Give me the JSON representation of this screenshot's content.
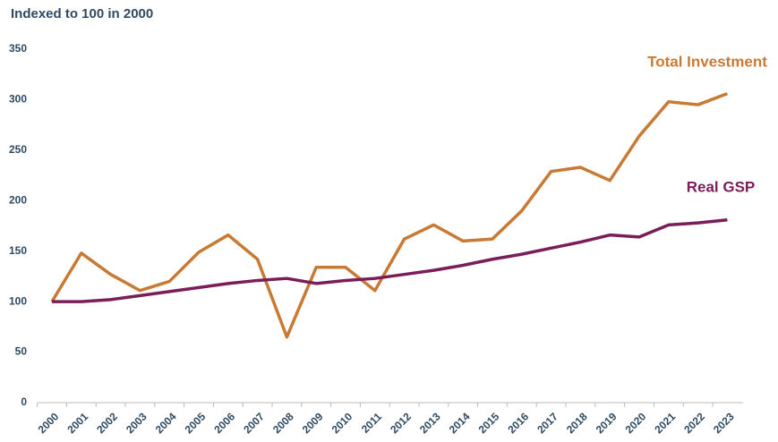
{
  "chart_data": {
    "type": "line",
    "title": "Indexed to 100 in 2000",
    "categories": [
      "2000",
      "2001",
      "2002",
      "2003",
      "2004",
      "2005",
      "2006",
      "2007",
      "2008",
      "2009",
      "2010",
      "2011",
      "2012",
      "2013",
      "2014",
      "2015",
      "2016",
      "2017",
      "2018",
      "2019",
      "2020",
      "2021",
      "2022",
      "2023"
    ],
    "series": [
      {
        "name": "Total Investment",
        "color": "#c87a34",
        "values": [
          100,
          148,
          127,
          111,
          120,
          149,
          166,
          142,
          65,
          134,
          134,
          111,
          162,
          176,
          160,
          162,
          190,
          229,
          233,
          220,
          264,
          298,
          295,
          306
        ]
      },
      {
        "name": "Real GSP",
        "color": "#7a1e5a",
        "values": [
          100,
          100,
          102,
          106,
          110,
          114,
          118,
          121,
          123,
          118,
          121,
          123,
          127,
          131,
          136,
          142,
          147,
          153,
          159,
          166,
          164,
          176,
          178,
          181
        ]
      }
    ],
    "ylim": [
      0,
      350
    ],
    "yticks": [
      0,
      50,
      100,
      150,
      200,
      250,
      300,
      350
    ],
    "grid": false
  }
}
